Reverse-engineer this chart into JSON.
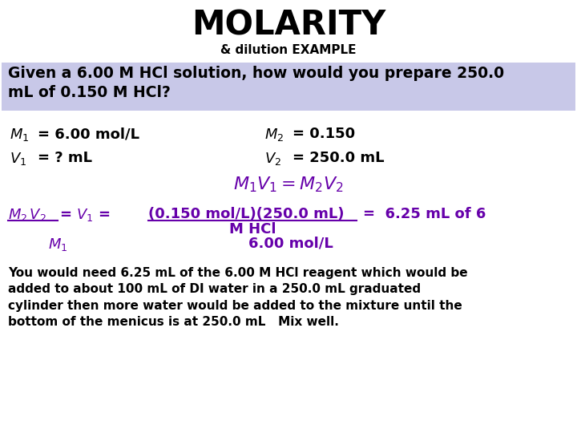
{
  "title": "MOLARITY",
  "subtitle": "& dilution EXAMPLE",
  "title_color": "#000000",
  "subtitle_color": "#000000",
  "question_bg_color": "#c8c8e8",
  "question_text": "Given a 6.00 M HCl solution, how would you prepare 250.0\nmL of 0.150 M HCl?",
  "question_color": "#000000",
  "purple_color": "#6600aa",
  "black_color": "#000000",
  "bg_color": "#ffffff",
  "bottom_text": "You would need 6.25 mL of the 6.00 M HCl reagent which would be\nadded to about 100 mL of DI water in a 250.0 mL graduated\ncylinder then more water would be added to the mixture until the\nbottom of the menicus is at 250.0 mL   Mix well."
}
